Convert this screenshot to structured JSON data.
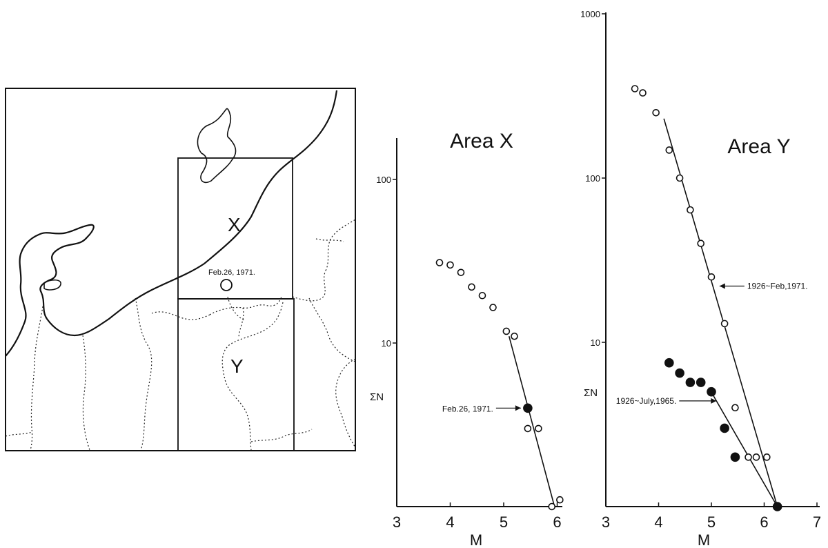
{
  "map": {
    "region_labels": [
      "X",
      "Y"
    ],
    "event_label": "Feb.26, 1971."
  },
  "chart_data": [
    {
      "type": "scatter",
      "title": "Area X",
      "xlabel": "M",
      "ylabel": "ΣN",
      "xlim": [
        3,
        6.5
      ],
      "ylim": [
        1,
        200
      ],
      "y_scale": "log",
      "x_ticks": [
        "3",
        "4",
        "5",
        "6"
      ],
      "y_ticks": [
        "10",
        "100"
      ],
      "series": [
        {
          "marker": "open-circle",
          "points": [
            [
              3.8,
              31
            ],
            [
              4.0,
              30
            ],
            [
              4.2,
              27
            ],
            [
              4.4,
              22
            ],
            [
              4.6,
              19.5
            ],
            [
              4.8,
              16.5
            ],
            [
              5.05,
              11.8
            ],
            [
              5.2,
              11
            ],
            [
              5.45,
              3
            ],
            [
              5.65,
              3
            ],
            [
              5.9,
              1.0
            ],
            [
              6.05,
              1.1
            ]
          ]
        },
        {
          "marker": "filled-circle",
          "points": [
            [
              5.45,
              4
            ]
          ]
        }
      ],
      "fit_lines": [
        {
          "points": [
            [
              5.1,
              11
            ],
            [
              5.95,
              1
            ]
          ]
        }
      ],
      "annotations": [
        {
          "text": "Feb.26, 1971.",
          "target": [
            5.45,
            4
          ]
        }
      ]
    },
    {
      "type": "scatter",
      "title": "Area Y",
      "xlabel": "M",
      "ylabel": "ΣN",
      "xlim": [
        3,
        7
      ],
      "ylim": [
        1,
        1000
      ],
      "y_scale": "log",
      "x_ticks": [
        "3",
        "4",
        "5",
        "6",
        "7"
      ],
      "y_ticks": [
        "10",
        "100",
        "1000"
      ],
      "series": [
        {
          "marker": "open-circle",
          "points": [
            [
              3.55,
              350
            ],
            [
              3.7,
              330
            ],
            [
              3.95,
              250
            ],
            [
              4.2,
              148
            ],
            [
              4.4,
              100
            ],
            [
              4.6,
              64
            ],
            [
              4.8,
              40
            ],
            [
              5.0,
              25
            ],
            [
              5.25,
              13
            ],
            [
              5.45,
              4
            ],
            [
              5.7,
              2
            ],
            [
              5.85,
              2
            ],
            [
              6.05,
              2
            ],
            [
              6.25,
              1
            ]
          ]
        },
        {
          "marker": "filled-circle",
          "points": [
            [
              4.2,
              7.5
            ],
            [
              4.4,
              6.5
            ],
            [
              4.6,
              5.7
            ],
            [
              4.8,
              5.7
            ],
            [
              5.0,
              5
            ],
            [
              5.25,
              3
            ],
            [
              5.45,
              2
            ],
            [
              6.25,
              1
            ]
          ]
        }
      ],
      "fit_lines": [
        {
          "points": [
            [
              4.1,
              230
            ],
            [
              6.25,
              1
            ]
          ],
          "label": "1926~Feb,1971."
        },
        {
          "points": [
            [
              4.95,
              5.3
            ],
            [
              6.25,
              1
            ]
          ],
          "label": "1926~July,1965."
        }
      ],
      "annotations": [
        {
          "text": "1926~Feb,1971.",
          "target": [
            5.05,
            22
          ]
        },
        {
          "text": "1926~July,1965.",
          "target": [
            5.2,
            4.4
          ]
        }
      ]
    }
  ]
}
